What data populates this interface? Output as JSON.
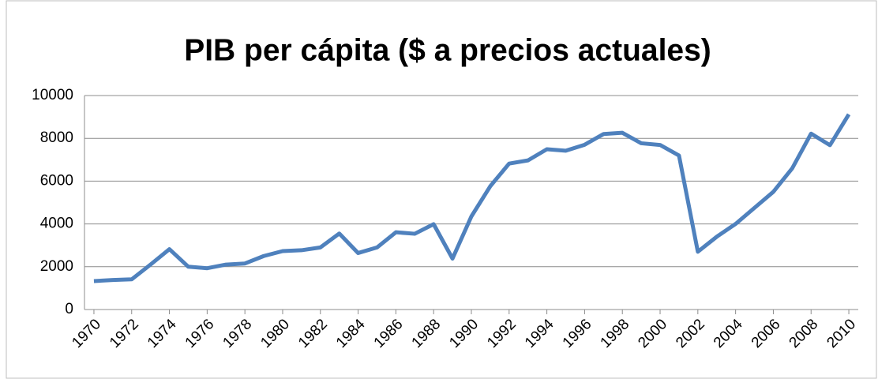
{
  "chart_data": {
    "type": "line",
    "title": "PIB per cápita ($ a precios actuales)",
    "x": [
      1970,
      1971,
      1972,
      1973,
      1974,
      1975,
      1976,
      1977,
      1978,
      1979,
      1980,
      1981,
      1982,
      1983,
      1984,
      1985,
      1986,
      1987,
      1988,
      1989,
      1990,
      1991,
      1992,
      1993,
      1994,
      1995,
      1996,
      1997,
      1998,
      1999,
      2000,
      2001,
      2002,
      2003,
      2004,
      2005,
      2006,
      2007,
      2008,
      2009,
      2010
    ],
    "series": [
      {
        "color": "#4f81bd",
        "values": [
          1330,
          1380,
          1410,
          2100,
          2820,
          2000,
          1930,
          2100,
          2150,
          2500,
          2730,
          2770,
          2900,
          3550,
          2640,
          2900,
          3610,
          3540,
          3990,
          2380,
          4350,
          5760,
          6820,
          6970,
          7490,
          7420,
          7700,
          8200,
          8260,
          7770,
          7690,
          7200,
          2700,
          3400,
          4000,
          4750,
          5500,
          6600,
          8220,
          7680,
          9120
        ]
      }
    ],
    "xlim": [
      1969.5,
      2010.5
    ],
    "xticks": [
      1970,
      1972,
      1974,
      1976,
      1978,
      1980,
      1982,
      1984,
      1986,
      1988,
      1990,
      1992,
      1994,
      1996,
      1998,
      2000,
      2002,
      2004,
      2006,
      2008,
      2010
    ],
    "ylim": [
      0,
      10000
    ],
    "yticks": [
      0,
      2000,
      4000,
      6000,
      8000,
      10000
    ],
    "grid": true
  }
}
